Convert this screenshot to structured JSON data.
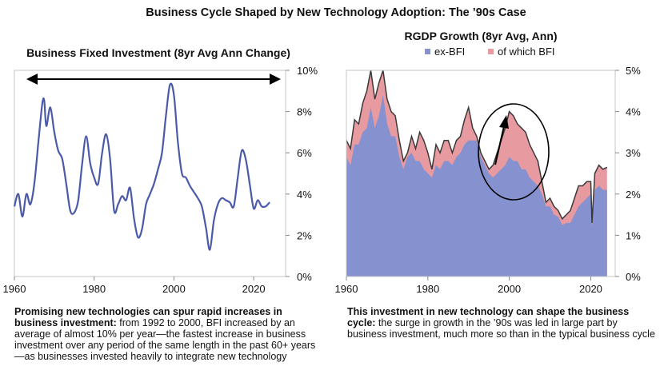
{
  "title": "Business Cycle Shaped by New Technology Adoption: The ’90s Case",
  "chart_data": [
    {
      "type": "line",
      "title": "Business Fixed Investment (8yr Avg Ann Change)",
      "x_ticks": [
        "1960",
        "1980",
        "2000",
        "2020"
      ],
      "y_ticks": [
        "0%",
        "2%",
        "4%",
        "6%",
        "8%",
        "10%"
      ],
      "xlim": [
        1960,
        2028
      ],
      "ylim": [
        0,
        10
      ],
      "color": "#4a5aa8",
      "annotation": "double-headed arrow spanning the full period",
      "series": [
        {
          "name": "BFI",
          "x": [
            1960,
            1961,
            1962,
            1963,
            1964,
            1965,
            1966,
            1967,
            1967.5,
            1968,
            1969,
            1970,
            1971,
            1972,
            1973,
            1974,
            1975,
            1976,
            1977,
            1978,
            1979,
            1980,
            1981,
            1982,
            1983,
            1984,
            1985,
            1986,
            1987,
            1988,
            1989,
            1990,
            1991,
            1992,
            1993,
            1994,
            1995,
            1996,
            1997,
            1998,
            1999,
            2000,
            2001,
            2002,
            2003,
            2004,
            2005,
            2006,
            2007,
            2008,
            2009,
            2010,
            2011,
            2012,
            2013,
            2014,
            2015,
            2016,
            2017,
            2018,
            2019,
            2020,
            2021,
            2022,
            2023,
            2024
          ],
          "values": [
            3.4,
            4.0,
            2.9,
            4.0,
            3.5,
            4.5,
            6.5,
            8.4,
            8.5,
            7.3,
            8.2,
            7.0,
            6.1,
            5.7,
            4.5,
            3.2,
            3.1,
            3.7,
            5.5,
            6.8,
            5.5,
            4.8,
            4.5,
            6.0,
            6.9,
            5.7,
            3.2,
            3.5,
            3.9,
            3.7,
            4.3,
            2.8,
            1.9,
            2.3,
            3.5,
            4.0,
            4.5,
            5.2,
            6.0,
            7.8,
            9.3,
            8.8,
            6.5,
            5.0,
            4.8,
            4.4,
            4.1,
            3.8,
            3.4,
            2.4,
            1.3,
            2.7,
            3.5,
            3.8,
            3.7,
            3.6,
            3.4,
            4.8,
            6.1,
            5.7,
            4.5,
            3.3,
            3.7,
            3.4,
            3.4,
            3.6
          ]
        }
      ]
    },
    {
      "type": "area",
      "title": "RGDP Growth (8yr Avg, Ann)",
      "x_ticks": [
        "1960",
        "1980",
        "2000",
        "2020"
      ],
      "y_ticks": [
        "0%",
        "1%",
        "2%",
        "3%",
        "4%",
        "5%"
      ],
      "xlim": [
        1960,
        2026
      ],
      "ylim": [
        0,
        5
      ],
      "legend": [
        {
          "name": "ex-BFI",
          "color": "#8691d0"
        },
        {
          "name": "of which BFI",
          "color": "#e79aa0"
        }
      ],
      "annotation": "circle and upward arrow highlighting the late-1990s surge",
      "x": [
        1960,
        1961,
        1962,
        1963,
        1964,
        1965,
        1966,
        1967,
        1968,
        1969,
        1970,
        1971,
        1972,
        1973,
        1974,
        1975,
        1976,
        1977,
        1978,
        1979,
        1980,
        1981,
        1982,
        1983,
        1984,
        1985,
        1986,
        1987,
        1988,
        1989,
        1990,
        1991,
        1992,
        1993,
        1994,
        1995,
        1996,
        1997,
        1998,
        1999,
        2000,
        2001,
        2002,
        2003,
        2004,
        2005,
        2006,
        2007,
        2008,
        2009,
        2010,
        2011,
        2012,
        2013,
        2014,
        2015,
        2016,
        2017,
        2018,
        2019,
        2020,
        2020.3,
        2021,
        2022,
        2023,
        2024
      ],
      "total": [
        3.3,
        3.1,
        3.8,
        3.7,
        4.2,
        4.5,
        5.0,
        4.3,
        4.7,
        5.0,
        4.3,
        4.0,
        3.9,
        3.3,
        2.8,
        3.0,
        3.4,
        3.1,
        3.5,
        3.3,
        3.0,
        2.6,
        3.2,
        3.0,
        3.3,
        3.3,
        3.0,
        3.3,
        3.4,
        3.8,
        4.1,
        3.6,
        3.4,
        3.0,
        2.8,
        2.6,
        2.7,
        3.0,
        3.3,
        3.6,
        4.0,
        3.9,
        3.7,
        3.6,
        3.5,
        3.2,
        3.0,
        2.8,
        2.3,
        1.8,
        1.9,
        1.7,
        1.6,
        1.4,
        1.5,
        1.6,
        1.9,
        2.2,
        2.2,
        2.3,
        2.3,
        1.3,
        2.5,
        2.7,
        2.6,
        2.65
      ],
      "ex_bfi": [
        2.9,
        2.7,
        3.2,
        3.2,
        3.5,
        3.6,
        4.1,
        3.6,
        3.9,
        4.4,
        3.7,
        3.4,
        3.4,
        2.9,
        2.6,
        2.9,
        3.0,
        2.8,
        2.8,
        2.6,
        2.5,
        2.4,
        2.7,
        2.6,
        2.8,
        2.8,
        2.7,
        2.9,
        3.0,
        3.2,
        3.3,
        3.3,
        3.3,
        2.9,
        2.7,
        2.5,
        2.4,
        2.5,
        2.6,
        2.7,
        2.9,
        2.8,
        2.8,
        2.6,
        2.6,
        2.4,
        2.3,
        2.2,
        2.0,
        1.7,
        1.7,
        1.5,
        1.45,
        1.25,
        1.3,
        1.3,
        1.5,
        1.7,
        1.8,
        1.9,
        2.0,
        1.2,
        2.1,
        2.2,
        2.1,
        2.1
      ]
    }
  ],
  "notes": {
    "left": {
      "bold": "Promising new technologies can spur rapid increases in business investment:",
      "text": " from 1992 to 2000, BFI increased by an average of almost 10% per year—the fastest increase in business investment over any period of the same length in the past 60+ years—as businesses invested heavily to integrate new technology"
    },
    "right": {
      "bold": "This investment in new technology can shape the business cycle:",
      "text": " the surge in growth in the ’90s was led in large part by business investment, much more so than in the typical business cycle"
    }
  }
}
